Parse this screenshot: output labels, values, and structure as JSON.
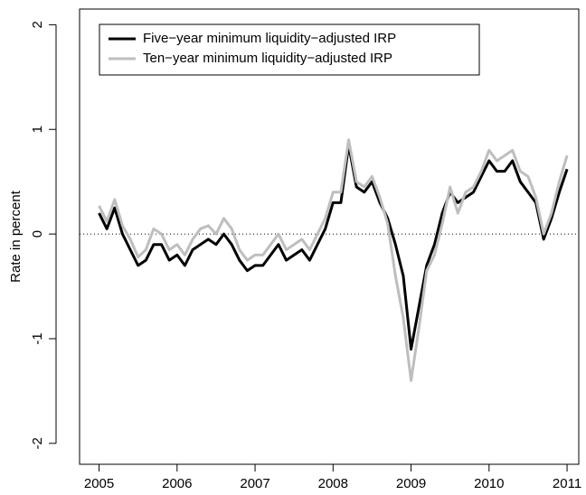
{
  "chart_data": {
    "type": "line",
    "y_label": "Rate in percent",
    "x": [
      2005.0,
      2005.1,
      2005.2,
      2005.3,
      2005.4,
      2005.5,
      2005.6,
      2005.7,
      2005.8,
      2005.9,
      2006.0,
      2006.1,
      2006.2,
      2006.3,
      2006.4,
      2006.5,
      2006.6,
      2006.7,
      2006.8,
      2006.9,
      2007.0,
      2007.1,
      2007.2,
      2007.3,
      2007.4,
      2007.5,
      2007.6,
      2007.7,
      2007.8,
      2007.9,
      2008.0,
      2008.1,
      2008.2,
      2008.3,
      2008.4,
      2008.5,
      2008.6,
      2008.7,
      2008.8,
      2008.9,
      2009.0,
      2009.1,
      2009.2,
      2009.3,
      2009.4,
      2009.5,
      2009.6,
      2009.7,
      2009.8,
      2009.9,
      2010.0,
      2010.1,
      2010.2,
      2010.3,
      2010.4,
      2010.5,
      2010.6,
      2010.7,
      2010.8,
      2010.9,
      2011.0
    ],
    "series": [
      {
        "name": "Five−year minimum liquidity−adjusted IRP",
        "color": "#000000",
        "values": [
          0.2,
          0.05,
          0.25,
          0.0,
          -0.15,
          -0.3,
          -0.25,
          -0.1,
          -0.1,
          -0.25,
          -0.2,
          -0.3,
          -0.15,
          -0.1,
          -0.05,
          -0.1,
          0.0,
          -0.1,
          -0.25,
          -0.35,
          -0.3,
          -0.3,
          -0.2,
          -0.1,
          -0.25,
          -0.2,
          -0.15,
          -0.25,
          -0.1,
          0.05,
          0.3,
          0.3,
          0.85,
          0.45,
          0.4,
          0.5,
          0.3,
          0.15,
          -0.1,
          -0.4,
          -1.1,
          -0.7,
          -0.3,
          -0.1,
          0.2,
          0.4,
          0.3,
          0.35,
          0.4,
          0.55,
          0.7,
          0.6,
          0.6,
          0.7,
          0.5,
          0.4,
          0.3,
          -0.05,
          0.15,
          0.4,
          0.62
        ]
      },
      {
        "name": "Ten−year minimum liquidity−adjusted IRP",
        "color": "#bebebe",
        "values": [
          0.27,
          0.12,
          0.33,
          0.08,
          -0.05,
          -0.22,
          -0.15,
          0.05,
          0.0,
          -0.15,
          -0.1,
          -0.2,
          -0.05,
          0.05,
          0.08,
          0.0,
          0.15,
          0.05,
          -0.15,
          -0.25,
          -0.2,
          -0.2,
          -0.1,
          0.0,
          -0.15,
          -0.1,
          -0.05,
          -0.15,
          0.0,
          0.15,
          0.4,
          0.4,
          0.9,
          0.5,
          0.45,
          0.55,
          0.35,
          0.1,
          -0.4,
          -0.8,
          -1.4,
          -0.9,
          -0.35,
          -0.2,
          0.1,
          0.45,
          0.2,
          0.4,
          0.45,
          0.6,
          0.8,
          0.7,
          0.75,
          0.8,
          0.6,
          0.55,
          0.35,
          0.0,
          0.2,
          0.5,
          0.75
        ]
      }
    ],
    "xlim": [
      2004.75,
      2011.15
    ],
    "xticks": [
      2005,
      2006,
      2007,
      2008,
      2009,
      2010,
      2011
    ],
    "ylim": [
      -2.2,
      2.15
    ],
    "yticks": [
      -2,
      -1,
      0,
      1,
      2
    ],
    "reference_line": 0,
    "legend": "top-left"
  }
}
